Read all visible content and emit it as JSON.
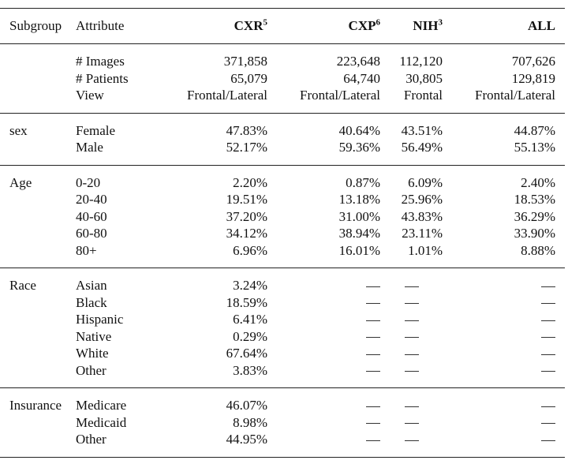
{
  "table": {
    "headers": {
      "subgroup": "Subgroup",
      "attribute": "Attribute",
      "cxr": "CXR",
      "cxr_ref": "5",
      "cxp": "CXP",
      "cxp_ref": "6",
      "nih": "NIH",
      "nih_ref": "3",
      "all": "ALL"
    },
    "overview": {
      "images": {
        "label": "# Images",
        "cxr": "371,858",
        "cxp": "223,648",
        "nih": "112,120",
        "all": "707,626"
      },
      "patients": {
        "label": "# Patients",
        "cxr": "65,079",
        "cxp": "64,740",
        "nih": "30,805",
        "all": "129,819"
      },
      "view": {
        "label": "View",
        "cxr": "Frontal/Lateral",
        "cxp": "Frontal/Lateral",
        "nih": "Frontal",
        "all": "Frontal/Lateral"
      }
    },
    "sex": {
      "label": "sex",
      "rows": [
        {
          "attribute": "Female",
          "cxr": "47.83%",
          "cxp": "40.64%",
          "nih": "43.51%",
          "all": "44.87%"
        },
        {
          "attribute": "Male",
          "cxr": "52.17%",
          "cxp": "59.36%",
          "nih": "56.49%",
          "all": "55.13%"
        }
      ]
    },
    "age": {
      "label": "Age",
      "rows": [
        {
          "attribute": "0-20",
          "cxr": "2.20%",
          "cxp": "0.87%",
          "nih": "6.09%",
          "all": "2.40%"
        },
        {
          "attribute": "20-40",
          "cxr": "19.51%",
          "cxp": "13.18%",
          "nih": "25.96%",
          "all": "18.53%"
        },
        {
          "attribute": "40-60",
          "cxr": "37.20%",
          "cxp": "31.00%",
          "nih": "43.83%",
          "all": "36.29%"
        },
        {
          "attribute": "60-80",
          "cxr": "34.12%",
          "cxp": "38.94%",
          "nih": "23.11%",
          "all": "33.90%"
        },
        {
          "attribute": "80+",
          "cxr": "6.96%",
          "cxp": "16.01%",
          "nih": "1.01%",
          "all": "8.88%"
        }
      ]
    },
    "race": {
      "label": "Race",
      "rows": [
        {
          "attribute": "Asian",
          "cxr": "3.24%"
        },
        {
          "attribute": "Black",
          "cxr": "18.59%"
        },
        {
          "attribute": "Hispanic",
          "cxr": "6.41%"
        },
        {
          "attribute": "Native",
          "cxr": "0.29%"
        },
        {
          "attribute": "White",
          "cxr": "67.64%"
        },
        {
          "attribute": "Other",
          "cxr": "3.83%"
        }
      ]
    },
    "insurance": {
      "label": "Insurance",
      "rows": [
        {
          "attribute": "Medicare",
          "cxr": "46.07%"
        },
        {
          "attribute": "Medicaid",
          "cxr": "8.98%"
        },
        {
          "attribute": "Other",
          "cxr": "44.95%"
        }
      ]
    }
  }
}
